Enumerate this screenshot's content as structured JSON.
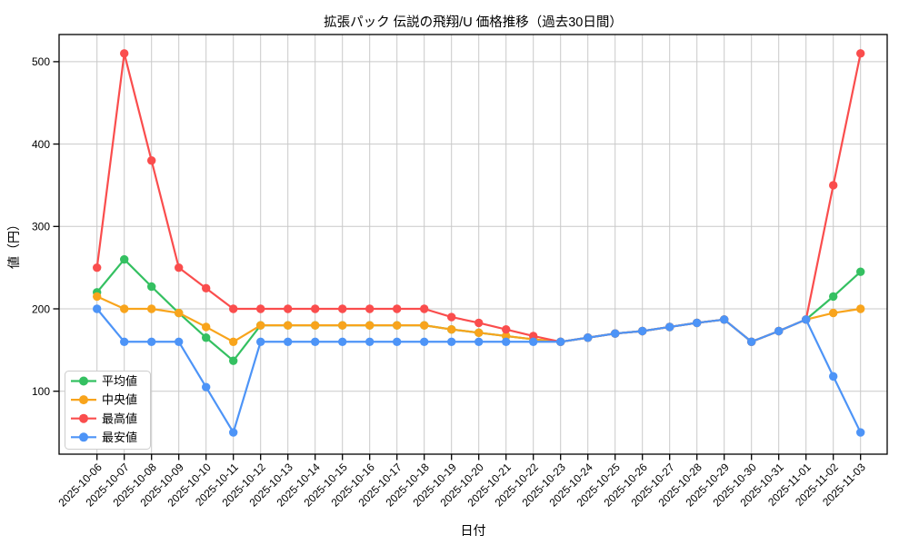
{
  "chart_data": {
    "type": "line",
    "title": "拡張パック 伝説の飛翔/U 価格推移（過去30日間）",
    "xlabel": "日付",
    "ylabel": "値（円）",
    "grid": true,
    "grid_color": "#c9c9c9",
    "axis_color": "#000000",
    "background_color": "#ffffff",
    "legend_position": "lower-left-inside",
    "yticks": [
      100,
      200,
      300,
      400,
      500
    ],
    "ylim": [
      23,
      535
    ],
    "x": [
      "2025-10-06",
      "2025-10-07",
      "2025-10-08",
      "2025-10-09",
      "2025-10-10",
      "2025-10-11",
      "2025-10-12",
      "2025-10-13",
      "2025-10-14",
      "2025-10-15",
      "2025-10-16",
      "2025-10-17",
      "2025-10-18",
      "2025-10-19",
      "2025-10-20",
      "2025-10-21",
      "2025-10-22",
      "2025-10-23",
      "2025-10-24",
      "2025-10-25",
      "2025-10-26",
      "2025-10-27",
      "2025-10-28",
      "2025-10-29",
      "2025-10-30",
      "2025-10-31",
      "2025-11-01",
      "2025-11-02",
      "2025-11-03"
    ],
    "series": [
      {
        "key": "average",
        "name": "平均値",
        "color": "#34c061",
        "values": [
          220,
          260,
          227,
          195,
          165,
          137,
          180,
          180,
          180,
          180,
          180,
          180,
          180,
          175,
          171,
          167,
          163,
          160,
          165,
          170,
          173,
          178,
          183,
          187,
          160,
          173,
          187,
          215,
          245
        ]
      },
      {
        "key": "median",
        "name": "中央値",
        "color": "#f8a41c",
        "values": [
          215,
          200,
          200,
          195,
          178,
          160,
          180,
          180,
          180,
          180,
          180,
          180,
          180,
          175,
          171,
          167,
          163,
          160,
          165,
          170,
          173,
          178,
          183,
          187,
          160,
          173,
          187,
          195,
          200
        ]
      },
      {
        "key": "max",
        "name": "最高値",
        "color": "#fa4d4d",
        "values": [
          250,
          510,
          380,
          250,
          225,
          200,
          200,
          200,
          200,
          200,
          200,
          200,
          200,
          190,
          183,
          175,
          167,
          160,
          165,
          170,
          173,
          178,
          183,
          187,
          160,
          173,
          187,
          350,
          510
        ]
      },
      {
        "key": "min",
        "name": "最安値",
        "color": "#4d94f7",
        "values": [
          200,
          160,
          160,
          160,
          105,
          50,
          160,
          160,
          160,
          160,
          160,
          160,
          160,
          160,
          160,
          160,
          160,
          160,
          165,
          170,
          173,
          178,
          183,
          187,
          160,
          173,
          187,
          118,
          50
        ]
      }
    ]
  }
}
